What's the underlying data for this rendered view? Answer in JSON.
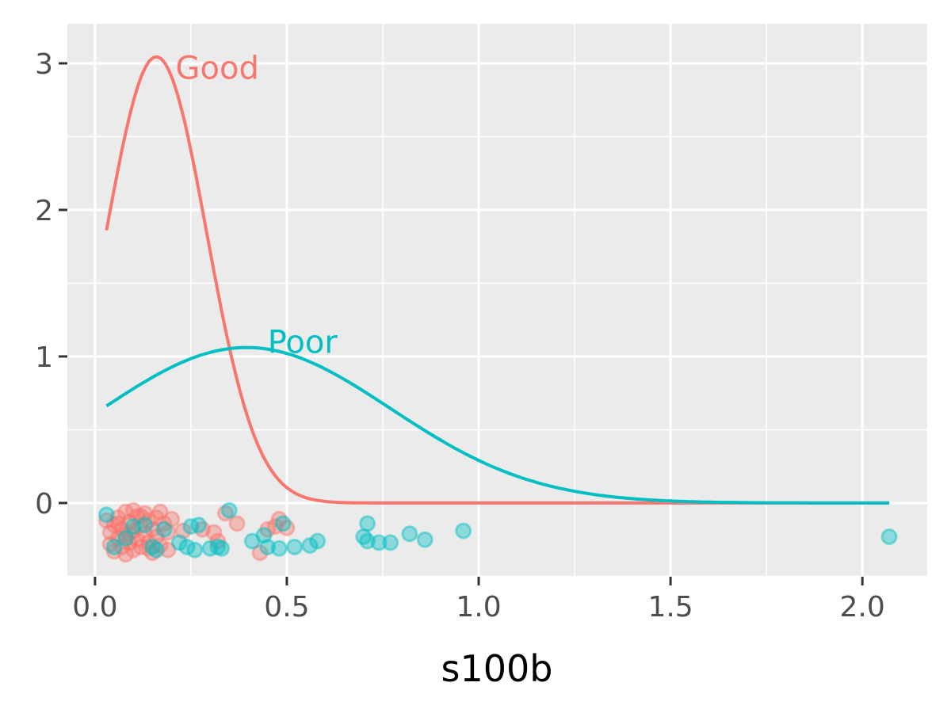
{
  "chart_data": {
    "type": "line",
    "title": "",
    "xlabel": "s100b",
    "ylabel": "",
    "xlim": [
      -0.072,
      2.169
    ],
    "ylim": [
      -0.503,
      3.27
    ],
    "grid": true,
    "legend": "none",
    "x_ticks": [
      {
        "v": 0,
        "label": "0.0"
      },
      {
        "v": 0.5,
        "label": "0.5"
      },
      {
        "v": 1,
        "label": "1.0"
      },
      {
        "v": 1.5,
        "label": "1.5"
      },
      {
        "v": 2,
        "label": "2.0"
      }
    ],
    "y_ticks": [
      {
        "v": 0,
        "label": "0"
      },
      {
        "v": 1,
        "label": "1"
      },
      {
        "v": 2,
        "label": "2"
      },
      {
        "v": 3,
        "label": "3"
      }
    ],
    "colors": {
      "Good": "#F8766D",
      "Poor": "#00BFC4",
      "panel": "#EBEBEB",
      "grid": "#FFFFFF"
    },
    "series": [
      {
        "name": "Good",
        "curve": "normal-density",
        "mean": 0.16,
        "sd": 0.131,
        "x_range": [
          0.03,
          2.07
        ],
        "label": {
          "text": "Good",
          "x": 0.21,
          "y": 2.97
        },
        "points": [
          [
            0.03,
            -0.12
          ],
          [
            0.04,
            -0.2
          ],
          [
            0.04,
            -0.28
          ],
          [
            0.05,
            -0.15
          ],
          [
            0.05,
            -0.33
          ],
          [
            0.06,
            -0.1
          ],
          [
            0.06,
            -0.24
          ],
          [
            0.07,
            -0.18
          ],
          [
            0.07,
            -0.3
          ],
          [
            0.08,
            -0.06
          ],
          [
            0.08,
            -0.22
          ],
          [
            0.08,
            -0.35
          ],
          [
            0.09,
            -0.13
          ],
          [
            0.09,
            -0.27
          ],
          [
            0.1,
            -0.05
          ],
          [
            0.1,
            -0.19
          ],
          [
            0.1,
            -0.32
          ],
          [
            0.11,
            -0.09
          ],
          [
            0.11,
            -0.25
          ],
          [
            0.12,
            -0.15
          ],
          [
            0.12,
            -0.3
          ],
          [
            0.13,
            -0.07
          ],
          [
            0.13,
            -0.21
          ],
          [
            0.14,
            -0.12
          ],
          [
            0.14,
            -0.27
          ],
          [
            0.15,
            -0.18
          ],
          [
            0.15,
            -0.34
          ],
          [
            0.16,
            -0.1
          ],
          [
            0.16,
            -0.23
          ],
          [
            0.17,
            -0.06
          ],
          [
            0.17,
            -0.29
          ],
          [
            0.18,
            -0.14
          ],
          [
            0.19,
            -0.2
          ],
          [
            0.19,
            -0.32
          ],
          [
            0.2,
            -0.11
          ],
          [
            0.23,
            -0.19
          ],
          [
            0.28,
            -0.18
          ],
          [
            0.31,
            -0.2
          ],
          [
            0.32,
            -0.26
          ],
          [
            0.34,
            -0.07
          ],
          [
            0.37,
            -0.14
          ],
          [
            0.43,
            -0.34
          ],
          [
            0.45,
            -0.18
          ],
          [
            0.47,
            -0.16
          ],
          [
            0.48,
            -0.11
          ],
          [
            0.5,
            -0.17
          ],
          [
            0.06,
            -0.14
          ],
          [
            0.09,
            -0.21
          ],
          [
            0.12,
            -0.09
          ],
          [
            0.14,
            -0.31
          ]
        ]
      },
      {
        "name": "Poor",
        "curve": "normal-density",
        "mean": 0.395,
        "sd": 0.376,
        "x_range": [
          0.03,
          2.07
        ],
        "label": {
          "text": "Poor",
          "x": 0.45,
          "y": 1.1
        },
        "points": [
          [
            0.03,
            -0.08
          ],
          [
            0.05,
            -0.3
          ],
          [
            0.08,
            -0.24
          ],
          [
            0.1,
            -0.16
          ],
          [
            0.13,
            -0.15
          ],
          [
            0.15,
            -0.3
          ],
          [
            0.16,
            -0.32
          ],
          [
            0.18,
            -0.18
          ],
          [
            0.22,
            -0.27
          ],
          [
            0.24,
            -0.3
          ],
          [
            0.25,
            -0.16
          ],
          [
            0.26,
            -0.32
          ],
          [
            0.27,
            -0.15
          ],
          [
            0.3,
            -0.31
          ],
          [
            0.32,
            -0.3
          ],
          [
            0.33,
            -0.31
          ],
          [
            0.35,
            -0.05
          ],
          [
            0.41,
            -0.26
          ],
          [
            0.44,
            -0.22
          ],
          [
            0.45,
            -0.3
          ],
          [
            0.48,
            -0.31
          ],
          [
            0.49,
            -0.14
          ],
          [
            0.52,
            -0.3
          ],
          [
            0.56,
            -0.29
          ],
          [
            0.58,
            -0.26
          ],
          [
            0.7,
            -0.23
          ],
          [
            0.71,
            -0.14
          ],
          [
            0.71,
            -0.26
          ],
          [
            0.74,
            -0.27
          ],
          [
            0.77,
            -0.27
          ],
          [
            0.82,
            -0.21
          ],
          [
            0.86,
            -0.25
          ],
          [
            0.96,
            -0.19
          ],
          [
            2.07,
            -0.23
          ]
        ]
      }
    ]
  }
}
